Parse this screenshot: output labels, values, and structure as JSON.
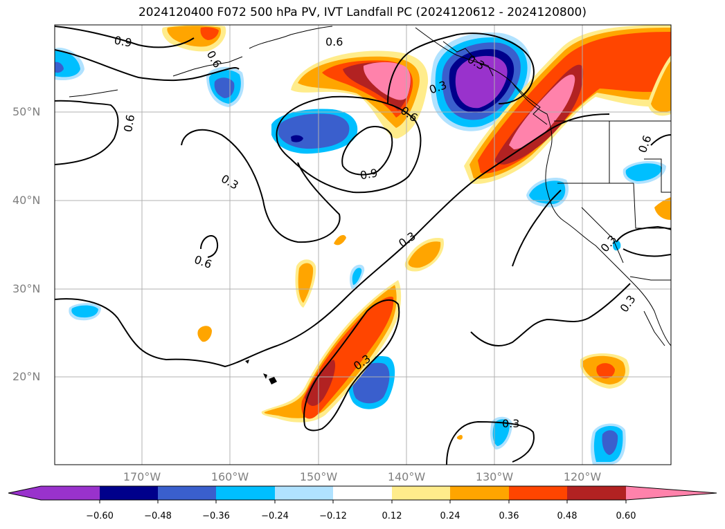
{
  "title": "2024120400 F072 500 hPa PV, IVT Landfall PC (2024120612 - 2024120800)",
  "lat_labels": [
    "50°N",
    "40°N",
    "30°N",
    "20°N"
  ],
  "lon_labels": [
    "170°W",
    "160°W",
    "150°W",
    "140°W",
    "130°W",
    "120°W"
  ],
  "contour_labels": [
    "0.9",
    "0.6",
    "0.6",
    "0.3",
    "0.6",
    "0.9",
    "0.3",
    "0.6",
    "0.3",
    "0.3",
    "0.3",
    "0.3",
    "0.6",
    "0.6",
    "0.3",
    "0.3"
  ],
  "colorbar": {
    "ticks": [
      "−0.60",
      "−0.48",
      "−0.36",
      "−0.24",
      "−0.12",
      "0.12",
      "0.24",
      "0.36",
      "0.48",
      "0.60"
    ],
    "colors": [
      "#9932cc",
      "#00008b",
      "#3a5fcd",
      "#00bfff",
      "#b0e2ff",
      "#ffffff",
      "#ffec8b",
      "#ffa500",
      "#ff4500",
      "#b22222",
      "#ff82ab"
    ]
  }
}
